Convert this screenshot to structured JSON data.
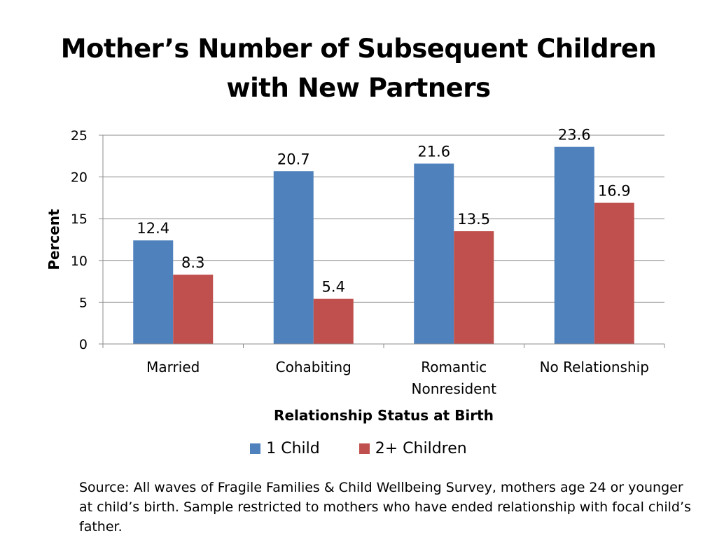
{
  "title": {
    "line1": "Mother’s Number of Subsequent Children",
    "line2": "with New Partners"
  },
  "chart_data": {
    "type": "bar",
    "title": "Mother’s Number of Subsequent Children with New Partners",
    "categories": [
      [
        "Married"
      ],
      [
        "Cohabiting"
      ],
      [
        "Romantic",
        "Nonresident"
      ],
      [
        "No Relationship"
      ]
    ],
    "series": [
      {
        "name": "1 Child",
        "color": "#4F81BD",
        "values": [
          12.4,
          20.7,
          21.6,
          23.6
        ]
      },
      {
        "name": "2+ Children",
        "color": "#C0504D",
        "values": [
          8.3,
          5.4,
          13.5,
          16.9
        ]
      }
    ],
    "xlabel": "Relationship Status at Birth",
    "ylabel": "Percent",
    "ylim": [
      0,
      25
    ],
    "yticks": [
      0,
      5,
      10,
      15,
      20,
      25
    ],
    "grid": true,
    "legend_position": "bottom",
    "data_labels": true
  },
  "source_note": "Source: All waves of Fragile Families & Child Wellbeing Survey, mothers age 24 or younger at child’s birth. Sample restricted to mothers who have ended relationship with focal child’s father."
}
